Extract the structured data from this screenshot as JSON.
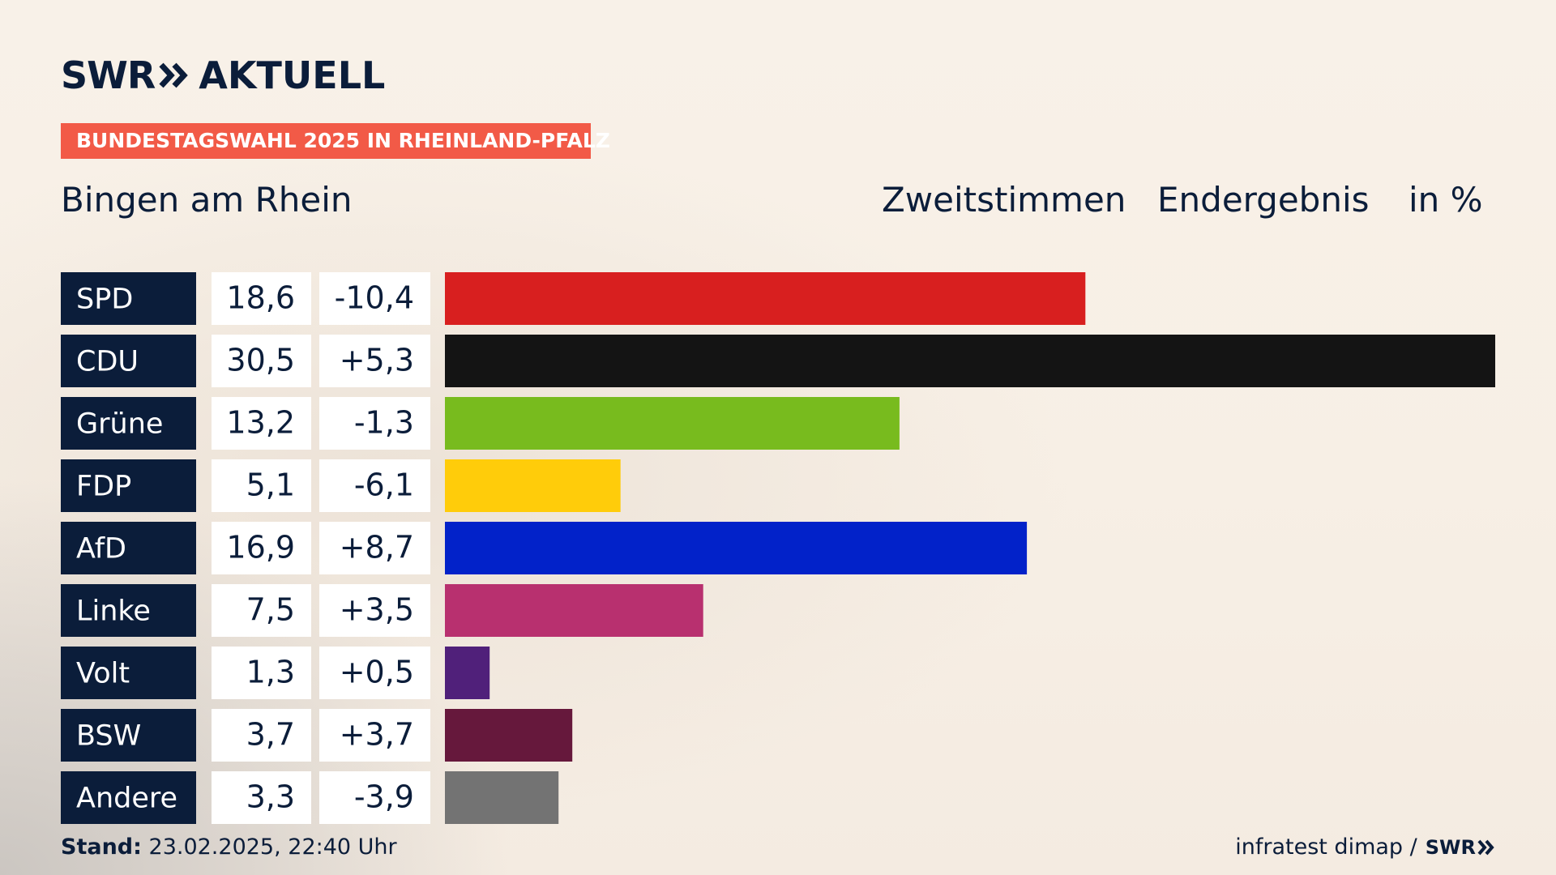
{
  "brand": {
    "logo_text": "SWR",
    "logo_suffix": "AKTUELL",
    "banner": "BUNDESTAGSWAHL 2025 IN RHEINLAND-PFALZ"
  },
  "header": {
    "region": "Bingen am Rhein",
    "vote_type": "Zweitstimmen",
    "result_type": "Endergebnis",
    "unit": "in %"
  },
  "footer": {
    "stand_label": "Stand:",
    "stand_value": "23.02.2025, 22:40 Uhr",
    "source": "infratest dimap /",
    "source_logo": "SWR"
  },
  "colors": {
    "navy": "#0b1d3a",
    "banner": "#f25a47"
  },
  "chart_data": {
    "type": "bar",
    "orientation": "horizontal",
    "title": "Bingen am Rhein",
    "unit": "%",
    "xlim": [
      0,
      30.5
    ],
    "categories": [
      "SPD",
      "CDU",
      "Grüne",
      "FDP",
      "AfD",
      "Linke",
      "Volt",
      "BSW",
      "Andere"
    ],
    "values": [
      18.6,
      30.5,
      13.2,
      5.1,
      16.9,
      7.5,
      1.3,
      3.7,
      3.3
    ],
    "value_labels": [
      "18,6",
      "30,5",
      "13,2",
      "5,1",
      "16,9",
      "7,5",
      "1,3",
      "3,7",
      "3,3"
    ],
    "changes": [
      -10.4,
      5.3,
      -1.3,
      -6.1,
      8.7,
      3.5,
      0.5,
      3.7,
      -3.9
    ],
    "change_labels": [
      "-10,4",
      "+5,3",
      "-1,3",
      "-6,1",
      "+8,7",
      "+3,5",
      "+0,5",
      "+3,7",
      "-3,9"
    ],
    "colors": [
      "#d81f1f",
      "#141414",
      "#78bb1e",
      "#ffcc0a",
      "#0222c9",
      "#b8306f",
      "#50207a",
      "#66183c",
      "#737373"
    ]
  }
}
